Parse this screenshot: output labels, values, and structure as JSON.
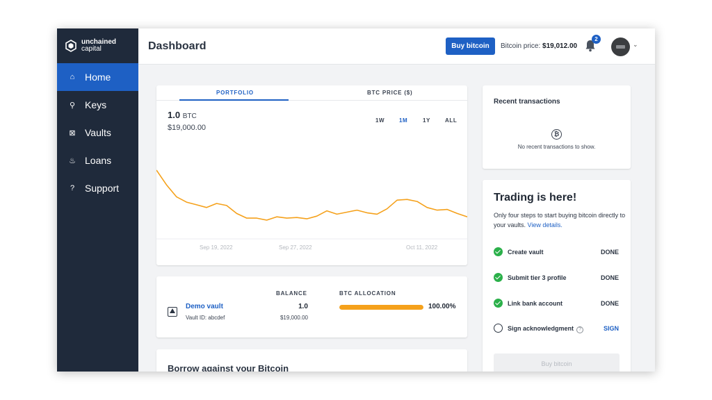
{
  "brand": {
    "line1": "unchained",
    "line2": "capital"
  },
  "sidebar": {
    "items": [
      {
        "label": "Home",
        "icon": "home-icon",
        "active": true
      },
      {
        "label": "Keys",
        "icon": "key-icon"
      },
      {
        "label": "Vaults",
        "icon": "vault-icon"
      },
      {
        "label": "Loans",
        "icon": "loan-hand-icon"
      },
      {
        "label": "Support",
        "icon": "question-icon"
      }
    ]
  },
  "header": {
    "title": "Dashboard",
    "buy_label": "Buy bitcoin",
    "price_label": "Bitcoin price:",
    "price_value": "$19,012.00",
    "notification_count": "2"
  },
  "portfolio": {
    "tabs": [
      "PORTFOLIO",
      "BTC PRICE ($)"
    ],
    "amount": "1.0",
    "unit": "BTC",
    "usd": "$19,000.00",
    "ranges": [
      "1W",
      "1M",
      "1Y",
      "ALL"
    ],
    "active_range": "1M"
  },
  "chart_data": {
    "type": "line",
    "title": "",
    "xlabel": "",
    "ylabel": "",
    "x_tick_labels": [
      "Sep 19, 2022",
      "Sep 27, 2022",
      "Oct 11, 2022"
    ],
    "grid": false,
    "series": [
      {
        "color": "#f5a11b",
        "values": [
          1.0,
          0.78,
          0.6,
          0.52,
          0.48,
          0.44,
          0.5,
          0.47,
          0.35,
          0.28,
          0.28,
          0.25,
          0.3,
          0.28,
          0.29,
          0.27,
          0.31,
          0.39,
          0.34,
          0.37,
          0.4,
          0.36,
          0.34,
          0.42,
          0.55,
          0.56,
          0.53,
          0.44,
          0.4,
          0.41,
          0.35,
          0.3
        ]
      }
    ]
  },
  "vault": {
    "headers": {
      "balance": "BALANCE",
      "allocation": "BTC ALLOCATION"
    },
    "name": "Demo vault",
    "id_text": "Vault ID: abcdef",
    "balance": "1.0",
    "balance_usd": "$19,000.00",
    "allocation_pct": "100.00%",
    "allocation_fraction": 1.0
  },
  "borrow": {
    "title": "Borrow against your Bitcoin"
  },
  "recent": {
    "title": "Recent transactions",
    "empty": "No recent transactions to show."
  },
  "trading": {
    "title": "Trading is here!",
    "desc": "Only four steps to start buying bitcoin directly to your vaults.",
    "link": "View details.",
    "steps": [
      {
        "label": "Create vault",
        "status": "DONE"
      },
      {
        "label": "Submit tier 3 profile",
        "status": "DONE"
      },
      {
        "label": "Link bank account",
        "status": "DONE"
      },
      {
        "label": "Sign acknowledgment",
        "status": "SIGN"
      }
    ],
    "buy_label": "Buy bitcoin"
  }
}
